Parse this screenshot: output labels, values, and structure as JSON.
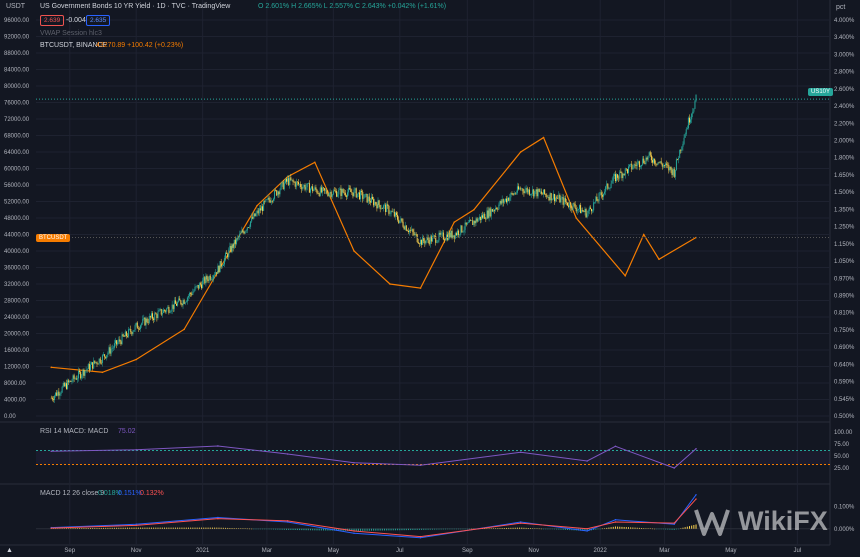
{
  "colors": {
    "background": "#131722",
    "grid": "#1e2230",
    "axis_text": "#b2b5be",
    "up_candle": "#26a69a",
    "down_candle": "#ffd54f",
    "btc_line": "#f57c00",
    "rsi_line": "#7e57c2",
    "macd_line": "#2962ff",
    "signal_line": "#ff5252",
    "level_up_badge": "#26a69a",
    "btc_badge": "#f57c00"
  },
  "header": {
    "currency_selector": "USDT",
    "title": "US Government Bonds 10 YR Yield · 1D · TVC · TradingView",
    "ohlc": "O 2.601% H 2.665% L 2.557% C 2.643% +0.042% (+1.61%)",
    "bid": "2.639",
    "spread": "-0.004",
    "ask": "2.635",
    "vwap_label": "VWAP Session hlc3",
    "btc_legend_name": "BTCUSDT, BINANCE",
    "btc_legend_value": "43270.89 +100.42 (+0.23%)",
    "right_unit": "pct"
  },
  "badges": {
    "us10y": "US10Y",
    "btcusdt": "BTCUSDT"
  },
  "left_axis_labels": [
    "96000.00",
    "92000.00",
    "88000.00",
    "84000.00",
    "80000.00",
    "76000.00",
    "72000.00",
    "68000.00",
    "64000.00",
    "60000.00",
    "56000.00",
    "52000.00",
    "48000.00",
    "44000.00",
    "40000.00",
    "36000.00",
    "32000.00",
    "28000.00",
    "24000.00",
    "20000.00",
    "16000.00",
    "12000.00",
    "8000.00",
    "4000.00",
    "0.00"
  ],
  "right_axis_labels": [
    "4.000%",
    "3.400%",
    "3.000%",
    "2.800%",
    "2.600%",
    "2.400%",
    "2.200%",
    "2.000%",
    "1.800%",
    "1.650%",
    "1.500%",
    "1.350%",
    "1.250%",
    "1.150%",
    "1.050%",
    "0.970%",
    "0.890%",
    "0.810%",
    "0.750%",
    "0.690%",
    "0.640%",
    "0.590%",
    "0.545%",
    "0.500%"
  ],
  "rsi_panel": {
    "label": "RSI 14 MACD: MACD",
    "value": "75.02",
    "axis_labels": [
      "100.00",
      "75.00",
      "50.00",
      "25.00"
    ]
  },
  "macd_panel": {
    "label": "MACD 12 26 close 9",
    "v1": "0.018%",
    "v2": "0.151%",
    "v3": "0.132%",
    "axis_labels": [
      "0.100%",
      "0.000%"
    ]
  },
  "time_axis": [
    "Sep",
    "Nov",
    "2021",
    "Mar",
    "May",
    "Jul",
    "Sep",
    "Nov",
    "2022",
    "Mar",
    "May",
    "Jul"
  ],
  "watermark": "WikiFX",
  "chart_data": [
    {
      "type": "line",
      "series": [
        {
          "name": "US10Y",
          "style": "candles",
          "unit": "%",
          "x": [
            "2020-08-15",
            "2020-10-01",
            "2020-11-01",
            "2020-12-15",
            "2021-01-15",
            "2021-02-20",
            "2021-03-20",
            "2021-04-20",
            "2021-05-20",
            "2021-06-20",
            "2021-07-20",
            "2021-08-20",
            "2021-09-20",
            "2021-10-20",
            "2021-11-20",
            "2021-12-20",
            "2022-01-15",
            "2022-02-15",
            "2022-03-10",
            "2022-03-30"
          ],
          "y": [
            0.55,
            0.68,
            0.8,
            0.92,
            1.08,
            1.45,
            1.72,
            1.62,
            1.62,
            1.48,
            1.25,
            1.3,
            1.45,
            1.65,
            1.58,
            1.45,
            1.75,
            1.95,
            1.8,
            2.64
          ]
        },
        {
          "name": "BTCUSDT",
          "style": "line",
          "unit": "USDT",
          "x": [
            "2020-08-15",
            "2020-10-01",
            "2020-11-01",
            "2020-12-15",
            "2021-01-15",
            "2021-02-20",
            "2021-03-20",
            "2021-04-14",
            "2021-05-20",
            "2021-06-22",
            "2021-07-20",
            "2021-08-20",
            "2021-09-07",
            "2021-10-20",
            "2021-11-10",
            "2021-12-10",
            "2022-01-24",
            "2022-02-10",
            "2022-02-24",
            "2022-03-30"
          ],
          "y": [
            11800,
            10600,
            13700,
            21000,
            35000,
            51000,
            58000,
            61500,
            40000,
            32000,
            31000,
            47000,
            50000,
            64000,
            67500,
            48000,
            34000,
            44000,
            38000,
            43270
          ]
        }
      ],
      "y_left_range": [
        0,
        96000
      ],
      "y_right_scale": "log"
    },
    {
      "type": "line",
      "series": [
        {
          "name": "RSI",
          "x": [
            "2020-08-15",
            "2020-11-01",
            "2021-01-15",
            "2021-03-20",
            "2021-05-20",
            "2021-07-20",
            "2021-10-20",
            "2021-12-20",
            "2022-01-15",
            "2022-03-10",
            "2022-03-30"
          ],
          "y": [
            68,
            72,
            83,
            60,
            35,
            28,
            65,
            40,
            82,
            20,
            75.02
          ]
        }
      ],
      "ylim": [
        0,
        100
      ],
      "levels": [
        70,
        30
      ]
    },
    {
      "type": "line",
      "series": [
        {
          "name": "MACD",
          "x": [
            "2020-08-15",
            "2020-11-01",
            "2021-01-15",
            "2021-03-20",
            "2021-05-20",
            "2021-07-20",
            "2021-10-20",
            "2021-12-20",
            "2022-01-15",
            "2022-03-10",
            "2022-03-30"
          ],
          "y": [
            0.005,
            0.02,
            0.05,
            0.03,
            -0.02,
            -0.04,
            0.03,
            -0.01,
            0.04,
            0.02,
            0.151
          ]
        },
        {
          "name": "Signal",
          "x": [
            "2020-08-15",
            "2020-11-01",
            "2021-01-15",
            "2021-03-20",
            "2021-05-20",
            "2021-07-20",
            "2021-10-20",
            "2021-12-20",
            "2022-01-15",
            "2022-03-10",
            "2022-03-30"
          ],
          "y": [
            0.003,
            0.015,
            0.045,
            0.035,
            -0.01,
            -0.035,
            0.025,
            0.0,
            0.03,
            0.025,
            0.132
          ]
        }
      ],
      "ylim": [
        -0.05,
        0.15
      ]
    }
  ]
}
